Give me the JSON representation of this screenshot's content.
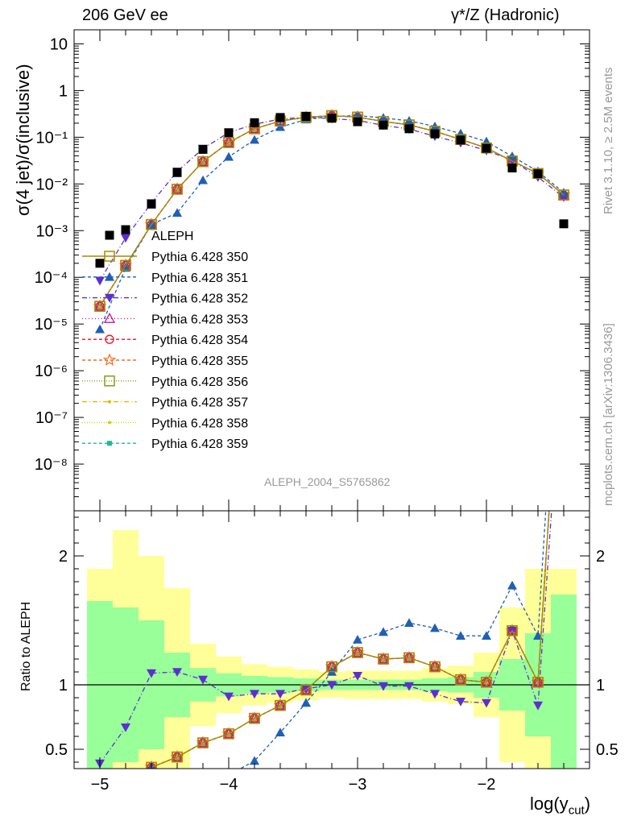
{
  "header": {
    "left_title": "206 GeV ee",
    "right_title": "γ*/Z (Hadronic)"
  },
  "side_labels": {
    "rivet": "Rivet 3.1.10, ≥ 2.5M events",
    "mcplots": "mcplots.cern.ch [arXiv:1306.3436]"
  },
  "chart_data": {
    "type": "scatter",
    "analysis_label": "ALEPH_2004_S5765862",
    "xlabel": "log(y_cut)",
    "ylabel_main": "σ(4 jet)/σ(inclusive)",
    "ylabel_ratio": "Ratio to ALEPH",
    "xlim": [
      -5.2,
      -1.2
    ],
    "main_ylim": [
      1e-09,
      20
    ],
    "main_yscale": "log",
    "ratio_ylim": [
      0.35,
      2.35
    ],
    "x_ticks": [
      -5,
      -4,
      -3,
      -2
    ],
    "x_tick_labels": [
      "−5",
      "−4",
      "−3",
      "−2"
    ],
    "main_y_tick_labels": [
      "10",
      "1",
      "10⁻¹",
      "10⁻²",
      "10⁻³",
      "10⁻⁴",
      "10⁻⁵",
      "10⁻⁶",
      "10⁻⁷",
      "10⁻⁸"
    ],
    "ratio_y_ticks": [
      0.5,
      1,
      2
    ],
    "ratio_y_tick_labels": [
      "0.5",
      "1",
      "2"
    ],
    "legend_position": "left-middle",
    "x": [
      -5.0,
      -4.8,
      -4.6,
      -4.4,
      -4.2,
      -4.0,
      -3.8,
      -3.6,
      -3.4,
      -3.2,
      -3.0,
      -2.8,
      -2.6,
      -2.4,
      -2.2,
      -2.0,
      -1.8,
      -1.6,
      -1.4
    ],
    "data": {
      "name": "ALEPH",
      "values": [
        0.0002,
        0.00105,
        0.0037,
        0.0175,
        0.055,
        0.125,
        0.205,
        0.265,
        0.28,
        0.255,
        0.215,
        0.182,
        0.152,
        0.118,
        0.087,
        0.058,
        0.022,
        0.0165,
        0.0014
      ]
    },
    "bands": {
      "inner_green_halfwidth": [
        0.65,
        0.6,
        0.5,
        0.25,
        0.13,
        0.09,
        0.07,
        0.06,
        0.05,
        0.04,
        0.04,
        0.04,
        0.04,
        0.05,
        0.06,
        0.1,
        0.2,
        0.4,
        0.7
      ],
      "outer_yellow_halfwidth": [
        0.9,
        1.2,
        1.0,
        0.75,
        0.32,
        0.22,
        0.16,
        0.14,
        0.12,
        0.1,
        0.11,
        0.11,
        0.11,
        0.13,
        0.15,
        0.25,
        0.6,
        0.9,
        0.9
      ]
    },
    "series": [
      {
        "name": "Pythia 6.428 350",
        "color": "#a68b00",
        "marker": "open-square",
        "dash": "solid",
        "values": [
          2.4e-05,
          0.00018,
          0.00135,
          0.0077,
          0.03,
          0.077,
          0.152,
          0.222,
          0.268,
          0.29,
          0.27,
          0.218,
          0.184,
          0.134,
          0.09,
          0.059,
          0.031,
          0.0168,
          0.0058
        ],
        "ratio": [
          0.12,
          0.17,
          0.36,
          0.44,
          0.55,
          0.62,
          0.74,
          0.84,
          0.96,
          1.14,
          1.25,
          1.2,
          1.21,
          1.14,
          1.04,
          1.02,
          1.42,
          1.02,
          4.1
        ]
      },
      {
        "name": "Pythia 6.428 351",
        "color": "#1f5fb5",
        "marker": "filled-triangle-up",
        "dash": "4,3",
        "values": [
          7.7e-06,
          0.00016,
          0.00135,
          0.0024,
          0.012,
          0.038,
          0.088,
          0.165,
          0.24,
          0.28,
          0.29,
          0.26,
          0.225,
          0.17,
          0.12,
          0.081,
          0.039,
          0.0185,
          0.0065
        ],
        "ratio": [
          0.04,
          0.15,
          0.36,
          0.14,
          0.22,
          0.3,
          0.41,
          0.63,
          0.86,
          1.1,
          1.35,
          1.41,
          1.48,
          1.44,
          1.38,
          1.38,
          1.77,
          1.38,
          4.6
        ]
      },
      {
        "name": "Pythia 6.428 352",
        "color": "#5d2ed1",
        "marker": "filled-triangle-down",
        "dash": "6,3,1,3",
        "values": [
          8.5e-05,
          0.0007,
          0.0039,
          0.0185,
          0.057,
          0.126,
          0.19,
          0.245,
          0.27,
          0.25,
          0.23,
          0.18,
          0.15,
          0.105,
          0.076,
          0.052,
          0.032,
          0.014,
          0.0052
        ],
        "ratio": [
          0.39,
          0.67,
          1.09,
          1.1,
          1.04,
          0.91,
          0.93,
          0.93,
          0.97,
          1.0,
          1.07,
          0.99,
          0.99,
          0.93,
          0.87,
          0.86,
          1.42,
          0.84,
          3.7
        ]
      },
      {
        "name": "Pythia 6.428 353",
        "color": "#c2178c",
        "marker": "open-triangle-up",
        "dash": "1,3",
        "values": [
          2.4e-05,
          0.00018,
          0.00135,
          0.0077,
          0.03,
          0.077,
          0.152,
          0.222,
          0.268,
          0.29,
          0.27,
          0.218,
          0.184,
          0.134,
          0.09,
          0.059,
          0.031,
          0.0168,
          0.0058
        ],
        "ratio": [
          0.12,
          0.17,
          0.36,
          0.44,
          0.55,
          0.62,
          0.74,
          0.84,
          0.96,
          1.14,
          1.25,
          1.2,
          1.21,
          1.14,
          1.04,
          1.02,
          1.42,
          1.02,
          4.1
        ]
      },
      {
        "name": "Pythia 6.428 354",
        "color": "#e8132b",
        "marker": "open-circle",
        "dash": "4,3",
        "values": [
          2.4e-05,
          0.00018,
          0.00135,
          0.0077,
          0.03,
          0.077,
          0.152,
          0.222,
          0.268,
          0.29,
          0.27,
          0.218,
          0.184,
          0.134,
          0.09,
          0.059,
          0.031,
          0.0168,
          0.0058
        ],
        "ratio": [
          0.12,
          0.17,
          0.36,
          0.44,
          0.55,
          0.62,
          0.74,
          0.84,
          0.96,
          1.14,
          1.25,
          1.2,
          1.21,
          1.14,
          1.04,
          1.02,
          1.42,
          1.02,
          4.1
        ]
      },
      {
        "name": "Pythia 6.428 355",
        "color": "#f26d21",
        "marker": "open-star",
        "dash": "4,3",
        "values": [
          2.4e-05,
          0.00018,
          0.00135,
          0.0077,
          0.03,
          0.077,
          0.152,
          0.222,
          0.268,
          0.29,
          0.27,
          0.218,
          0.184,
          0.134,
          0.09,
          0.059,
          0.031,
          0.0168,
          0.0058
        ],
        "ratio": [
          0.12,
          0.17,
          0.36,
          0.44,
          0.55,
          0.62,
          0.74,
          0.84,
          0.96,
          1.14,
          1.25,
          1.2,
          1.21,
          1.14,
          1.04,
          1.02,
          1.42,
          1.02,
          4.1
        ]
      },
      {
        "name": "Pythia 6.428 356",
        "color": "#8a9a1c",
        "marker": "open-square",
        "dash": "1,2",
        "values": [
          2.4e-05,
          0.00018,
          0.00135,
          0.0077,
          0.03,
          0.077,
          0.152,
          0.222,
          0.268,
          0.29,
          0.27,
          0.218,
          0.184,
          0.134,
          0.09,
          0.059,
          0.031,
          0.0168,
          0.0058
        ],
        "ratio": [
          0.12,
          0.17,
          0.36,
          0.44,
          0.55,
          0.62,
          0.74,
          0.84,
          0.96,
          1.14,
          1.25,
          1.2,
          1.21,
          1.14,
          1.04,
          1.02,
          1.42,
          1.02,
          4.1
        ]
      },
      {
        "name": "Pythia 6.428 357",
        "color": "#e6b800",
        "marker": "small-dot",
        "dash": "6,3,1,3",
        "values": [
          2.4e-05,
          0.00018,
          0.00135,
          0.0077,
          0.03,
          0.077,
          0.152,
          0.222,
          0.268,
          0.29,
          0.27,
          0.218,
          0.184,
          0.134,
          0.09,
          0.059,
          0.031,
          0.0168,
          0.0058
        ],
        "ratio": [
          0.12,
          0.17,
          0.36,
          0.44,
          0.55,
          0.62,
          0.74,
          0.84,
          0.96,
          1.14,
          1.25,
          1.2,
          1.21,
          1.14,
          1.04,
          1.02,
          1.42,
          1.02,
          4.1
        ]
      },
      {
        "name": "Pythia 6.428 358",
        "color": "#c8d400",
        "marker": "small-dot",
        "dash": "1,2",
        "values": [
          2.4e-05,
          0.00018,
          0.00135,
          0.0077,
          0.03,
          0.077,
          0.152,
          0.222,
          0.268,
          0.29,
          0.27,
          0.218,
          0.184,
          0.134,
          0.09,
          0.059,
          0.031,
          0.0168,
          0.0058
        ],
        "ratio": [
          0.12,
          0.17,
          0.36,
          0.44,
          0.55,
          0.62,
          0.74,
          0.84,
          0.96,
          1.14,
          1.25,
          1.2,
          1.21,
          1.14,
          1.04,
          1.02,
          1.42,
          1.02,
          4.1
        ]
      },
      {
        "name": "Pythia 6.428 359",
        "color": "#1bbc9b",
        "marker": "filled-square-small",
        "dash": "4,3",
        "values": [
          2.4e-05,
          0.00018,
          0.00135,
          0.0077,
          0.03,
          0.077,
          0.152,
          0.222,
          0.268,
          0.29,
          0.27,
          0.218,
          0.184,
          0.134,
          0.09,
          0.059,
          0.031,
          0.0168,
          0.0058
        ],
        "ratio": [
          0.12,
          0.17,
          0.36,
          0.44,
          0.55,
          0.62,
          0.74,
          0.84,
          0.96,
          1.14,
          1.25,
          1.2,
          1.21,
          1.14,
          1.04,
          1.02,
          1.42,
          1.02,
          4.1
        ]
      }
    ]
  }
}
